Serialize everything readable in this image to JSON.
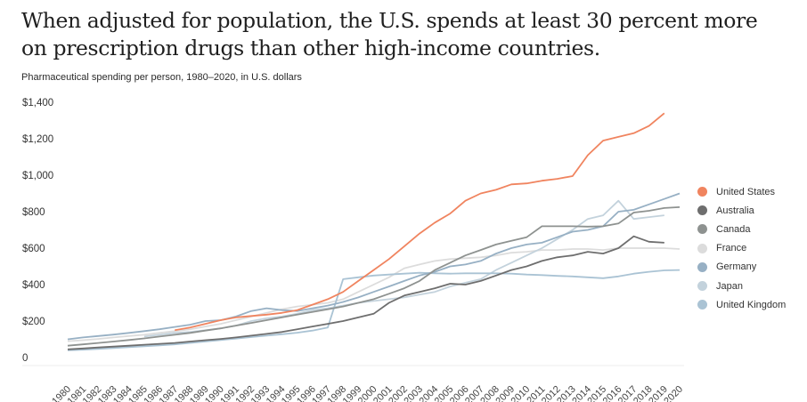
{
  "header": {
    "title": "When adjusted for population, the U.S. spends at least 30 percent more on prescription drugs than other high-income countries.",
    "subtitle": "Pharmaceutical spending per person, 1980–2020, in U.S. dollars"
  },
  "chart_data": {
    "type": "line",
    "title": "When adjusted for population, the U.S. spends at least 30 percent more on prescription drugs than other high-income countries.",
    "subtitle": "Pharmaceutical spending per person, 1980–2020, in U.S. dollars",
    "xlabel": "",
    "ylabel": "",
    "ylim": [
      0,
      1400
    ],
    "yticks": [
      0,
      200,
      400,
      600,
      800,
      1000,
      1200,
      1400
    ],
    "ytick_labels": [
      "0",
      "$200",
      "$400",
      "$600",
      "$800",
      "$1,000",
      "$1,200",
      "$1,400"
    ],
    "x": [
      1980,
      1981,
      1982,
      1983,
      1984,
      1985,
      1986,
      1987,
      1988,
      1989,
      1990,
      1991,
      1992,
      1993,
      1994,
      1995,
      1996,
      1997,
      1998,
      1999,
      2000,
      2001,
      2002,
      2003,
      2004,
      2005,
      2006,
      2007,
      2008,
      2009,
      2010,
      2011,
      2012,
      2013,
      2014,
      2015,
      2016,
      2017,
      2018,
      2019,
      2020
    ],
    "xtick_labels": [
      "1980",
      "1981",
      "1982",
      "1983",
      "1984",
      "1985",
      "1986",
      "1987",
      "1988",
      "1989",
      "1990",
      "1991",
      "1992",
      "1993",
      "1994",
      "1995",
      "1996",
      "1997",
      "1998",
      "1999",
      "2000",
      "2001",
      "2002",
      "2003",
      "2004",
      "2005",
      "2006",
      "2007",
      "2008",
      "2009",
      "2010",
      "2011",
      "2012",
      "2013",
      "2014",
      "2015",
      "2016",
      "2017",
      "2018",
      "2019",
      "2020"
    ],
    "grid": false,
    "legend_position": "right",
    "series": [
      {
        "name": "United States",
        "color": "#f0845f",
        "values": [
          null,
          null,
          null,
          null,
          null,
          null,
          null,
          150,
          165,
          185,
          205,
          220,
          228,
          235,
          245,
          260,
          290,
          320,
          360,
          420,
          480,
          540,
          610,
          680,
          740,
          790,
          860,
          900,
          920,
          950,
          955,
          970,
          980,
          995,
          1110,
          1190,
          1210,
          1230,
          1270,
          1340,
          null
        ]
      },
      {
        "name": "Australia",
        "color": "#6e6e6e",
        "values": [
          45,
          50,
          55,
          60,
          65,
          70,
          75,
          80,
          88,
          95,
          102,
          110,
          120,
          130,
          140,
          155,
          170,
          185,
          200,
          220,
          240,
          300,
          340,
          360,
          380,
          405,
          400,
          420,
          450,
          480,
          500,
          530,
          550,
          560,
          580,
          570,
          600,
          665,
          635,
          630,
          null
        ]
      },
      {
        "name": "Canada",
        "color": "#8e9290",
        "values": [
          65,
          72,
          80,
          88,
          96,
          105,
          115,
          125,
          135,
          148,
          160,
          175,
          190,
          205,
          220,
          235,
          250,
          265,
          280,
          300,
          320,
          350,
          380,
          420,
          480,
          520,
          560,
          590,
          620,
          640,
          660,
          720,
          720,
          720,
          718,
          720,
          735,
          795,
          805,
          820,
          825
        ]
      },
      {
        "name": "France",
        "color": "#dcdcdc",
        "values": [
          90,
          95,
          102,
          110,
          118,
          125,
          135,
          145,
          155,
          170,
          185,
          205,
          225,
          245,
          265,
          280,
          290,
          300,
          320,
          360,
          400,
          440,
          490,
          510,
          530,
          540,
          545,
          550,
          560,
          575,
          580,
          590,
          590,
          595,
          595,
          590,
          600,
          600,
          600,
          600,
          595
        ]
      },
      {
        "name": "Germany",
        "color": "#97b0c4",
        "values": [
          100,
          110,
          118,
          126,
          135,
          145,
          155,
          168,
          180,
          200,
          205,
          225,
          255,
          270,
          260,
          255,
          270,
          285,
          305,
          330,
          360,
          390,
          420,
          450,
          470,
          500,
          510,
          530,
          570,
          600,
          620,
          630,
          660,
          690,
          700,
          720,
          800,
          810,
          840,
          870,
          900
        ]
      },
      {
        "name": "Japan",
        "color": "#c3d2dc",
        "values": [
          null,
          null,
          null,
          null,
          null,
          115,
          125,
          135,
          140,
          150,
          160,
          175,
          200,
          215,
          225,
          240,
          260,
          270,
          285,
          300,
          310,
          320,
          330,
          345,
          360,
          390,
          410,
          430,
          480,
          520,
          560,
          600,
          650,
          700,
          760,
          780,
          860,
          760,
          770,
          780,
          null
        ]
      },
      {
        "name": "United Kingdom",
        "color": "#aac3d4",
        "values": [
          40,
          43,
          47,
          52,
          57,
          62,
          67,
          72,
          80,
          88,
          96,
          104,
          112,
          120,
          128,
          136,
          148,
          165,
          430,
          440,
          450,
          455,
          460,
          465,
          462,
          460,
          462,
          462,
          462,
          460,
          455,
          452,
          448,
          445,
          440,
          435,
          445,
          460,
          470,
          478,
          480
        ]
      }
    ]
  }
}
